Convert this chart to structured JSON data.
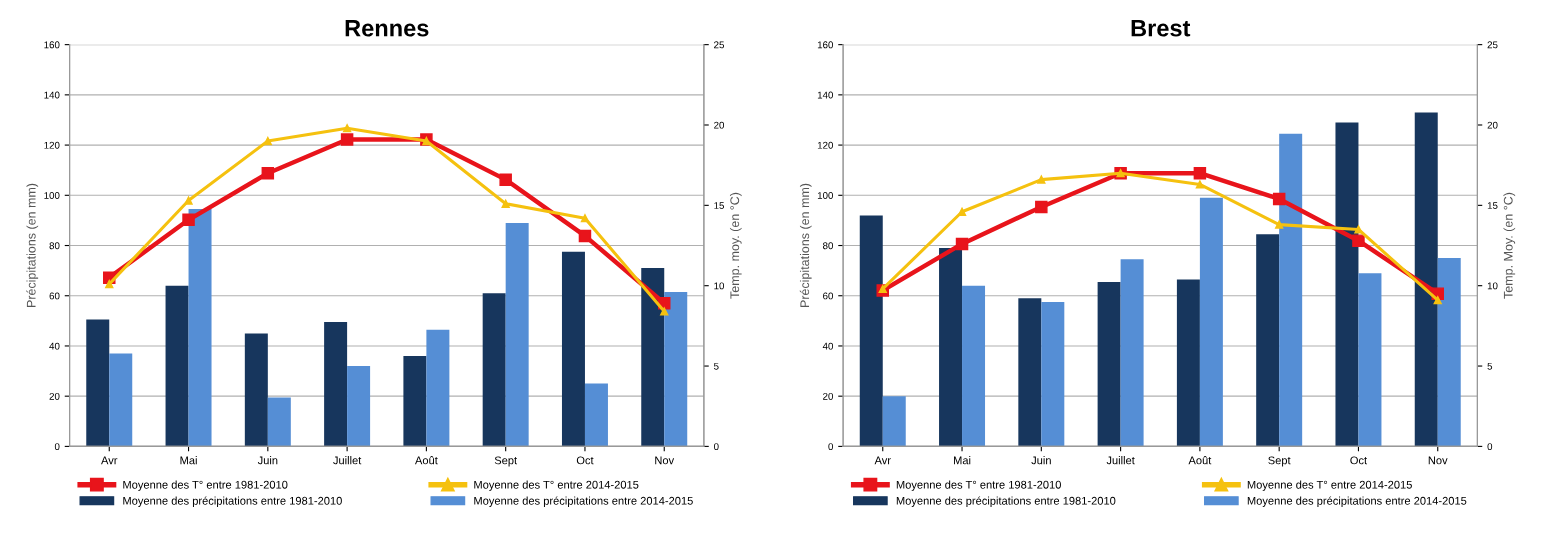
{
  "chart_data": [
    {
      "type": "bar",
      "title": "Rennes",
      "ylabel": "Précipitations (en mm)",
      "y2label": "Temp. moy. (en °C)",
      "categories": [
        "Avr",
        "Mai",
        "Juin",
        "Juillet",
        "Août",
        "Sept",
        "Oct",
        "Nov"
      ],
      "ylim": [
        0,
        160
      ],
      "yticks": [
        0,
        20,
        40,
        60,
        80,
        100,
        120,
        140,
        160
      ],
      "y2lim": [
        0,
        25
      ],
      "y2ticks": [
        0,
        5,
        10,
        15,
        20,
        25
      ],
      "grid": "y",
      "legend": "bottom",
      "series": [
        {
          "name": "Moyenne des T° entre 1981-2010",
          "type": "line",
          "axis": "y2",
          "marker": "square",
          "color": "#e8141b",
          "values": [
            10.5,
            14.1,
            17,
            19.1,
            19.1,
            16.6,
            13.1,
            8.9
          ]
        },
        {
          "name": "Moyenne des T° entre 2014-2015",
          "type": "line",
          "axis": "y2",
          "marker": "triangle",
          "color": "#f5c10f",
          "values": [
            10.1,
            15.3,
            19,
            19.8,
            19,
            15.1,
            14.2,
            8.4
          ]
        },
        {
          "name": "Moyenne des précipitations entre 1981-2010",
          "color": "#17365d",
          "values": [
            50.5,
            64,
            45,
            49.5,
            36,
            61,
            77.5,
            71
          ]
        },
        {
          "name": "Moyenne des précipitations entre 2014-2015",
          "color": "#558ed5",
          "values": [
            37,
            94.5,
            19.5,
            32,
            46.5,
            89,
            25,
            61.5
          ]
        }
      ]
    },
    {
      "type": "bar",
      "title": "Brest",
      "ylabel": "Précipitations (en mm)",
      "y2label": "Temp. Moy. (en °C)",
      "categories": [
        "Avr",
        "Mai",
        "Juin",
        "Juillet",
        "Août",
        "Sept",
        "Oct",
        "Nov"
      ],
      "ylim": [
        0,
        160
      ],
      "yticks": [
        0,
        20,
        40,
        60,
        80,
        100,
        120,
        140,
        160
      ],
      "y2lim": [
        0,
        25
      ],
      "y2ticks": [
        0,
        5,
        10,
        15,
        20,
        25
      ],
      "grid": "y",
      "legend": "bottom",
      "series": [
        {
          "name": "Moyenne des T° entre 1981-2010",
          "type": "line",
          "axis": "y2",
          "marker": "square",
          "color": "#e8141b",
          "values": [
            9.7,
            12.6,
            14.9,
            17,
            17,
            15.4,
            12.8,
            9.5
          ]
        },
        {
          "name": "Moyenne des T° entre 2014-2015",
          "type": "line",
          "axis": "y2",
          "marker": "triangle",
          "color": "#f5c10f",
          "values": [
            9.8,
            14.6,
            16.6,
            17,
            16.3,
            13.8,
            13.5,
            9.1
          ]
        },
        {
          "name": "Moyenne des précipitations entre 1981-2010",
          "color": "#17365d",
          "values": [
            92,
            79,
            59,
            65.5,
            66.5,
            84.5,
            129,
            133
          ]
        },
        {
          "name": "Moyenne des précipitations entre 2014-2015",
          "color": "#558ed5",
          "values": [
            20,
            64,
            57.5,
            74.5,
            99,
            124.5,
            69,
            75
          ]
        }
      ]
    }
  ]
}
